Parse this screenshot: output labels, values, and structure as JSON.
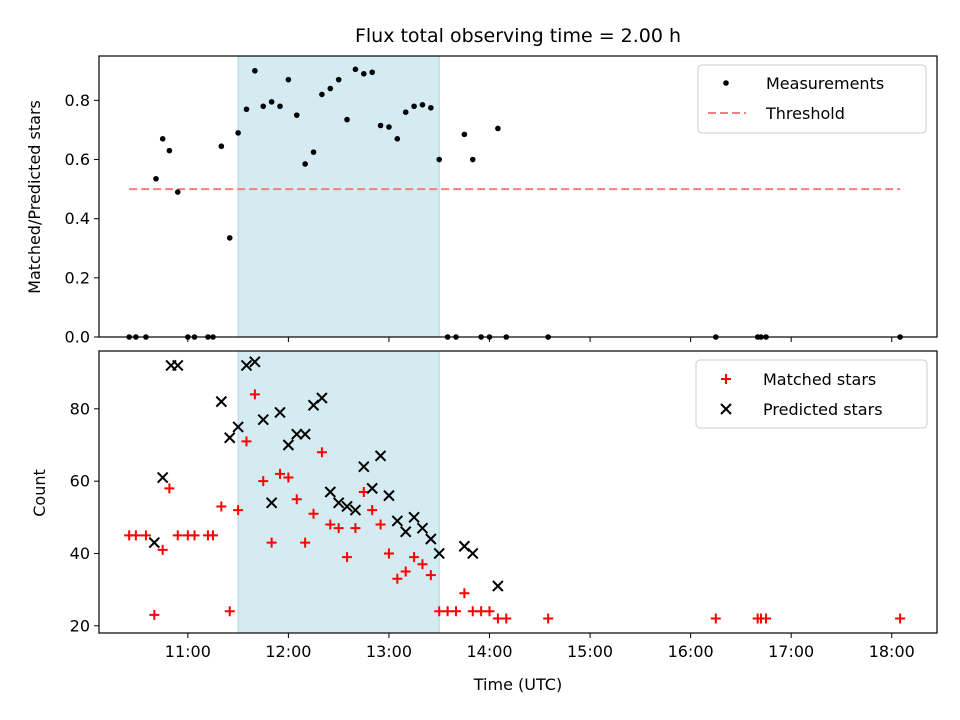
{
  "chart_data": [
    {
      "type": "scatter",
      "title": "Flux total observing time = 2.00 h",
      "ylabel": "Matched/Predicted stars",
      "xlim": [
        "10:07",
        "18:27"
      ],
      "ylim": [
        0,
        0.95
      ],
      "yticks": [
        0.0,
        0.2,
        0.4,
        0.6,
        0.8
      ],
      "ytick_labels": [
        "0.0",
        "0.2",
        "0.4",
        "0.6",
        "0.8"
      ],
      "xticks": [
        "11:00",
        "12:00",
        "13:00",
        "14:00",
        "15:00",
        "16:00",
        "17:00",
        "18:00"
      ],
      "shaded_span": [
        "11:30",
        "13:30"
      ],
      "shaded_color": "#d4ebf1",
      "legend": {
        "placement": "top-right",
        "measurements_label": "Measurements",
        "threshold_label": "Threshold"
      },
      "threshold": {
        "value": 0.5,
        "x_range": [
          "10:25",
          "18:05"
        ],
        "color": "#f08080"
      },
      "series": [
        {
          "name": "Measurements",
          "marker": "dot",
          "color": "#000000",
          "points": [
            [
              "10:25",
              0.0
            ],
            [
              "10:29",
              0.0
            ],
            [
              "10:35",
              0.0
            ],
            [
              "10:41",
              0.535
            ],
            [
              "10:45",
              0.67
            ],
            [
              "10:49",
              0.63
            ],
            [
              "10:54",
              0.49
            ],
            [
              "11:00",
              0.0
            ],
            [
              "11:04",
              0.0
            ],
            [
              "11:12",
              0.0
            ],
            [
              "11:15",
              0.0
            ],
            [
              "11:20",
              0.645
            ],
            [
              "11:25",
              0.335
            ],
            [
              "11:30",
              0.69
            ],
            [
              "11:35",
              0.77
            ],
            [
              "11:40",
              0.9
            ],
            [
              "11:45",
              0.78
            ],
            [
              "11:50",
              0.795
            ],
            [
              "11:55",
              0.78
            ],
            [
              "12:00",
              0.87
            ],
            [
              "12:05",
              0.75
            ],
            [
              "12:10",
              0.585
            ],
            [
              "12:15",
              0.625
            ],
            [
              "12:20",
              0.82
            ],
            [
              "12:25",
              0.84
            ],
            [
              "12:30",
              0.87
            ],
            [
              "12:35",
              0.735
            ],
            [
              "12:40",
              0.905
            ],
            [
              "12:45",
              0.89
            ],
            [
              "12:50",
              0.895
            ],
            [
              "12:55",
              0.715
            ],
            [
              "13:00",
              0.71
            ],
            [
              "13:05",
              0.67
            ],
            [
              "13:10",
              0.76
            ],
            [
              "13:15",
              0.78
            ],
            [
              "13:20",
              0.785
            ],
            [
              "13:25",
              0.775
            ],
            [
              "13:30",
              0.6
            ],
            [
              "13:35",
              0.0
            ],
            [
              "13:40",
              0.0
            ],
            [
              "13:45",
              0.685
            ],
            [
              "13:50",
              0.6
            ],
            [
              "13:55",
              0.0
            ],
            [
              "14:00",
              0.0
            ],
            [
              "14:05",
              0.705
            ],
            [
              "14:10",
              0.0
            ],
            [
              "14:35",
              0.0
            ],
            [
              "16:15",
              0.0
            ],
            [
              "16:40",
              0.0
            ],
            [
              "16:42",
              0.0
            ],
            [
              "16:45",
              0.0
            ],
            [
              "18:05",
              0.0
            ]
          ]
        }
      ]
    },
    {
      "type": "scatter",
      "xlabel": "Time (UTC)",
      "ylabel": "Count",
      "xlim": [
        "10:07",
        "18:27"
      ],
      "ylim": [
        18,
        96
      ],
      "yticks": [
        20,
        40,
        60,
        80
      ],
      "ytick_labels": [
        "20",
        "40",
        "60",
        "80"
      ],
      "xticks": [
        "11:00",
        "12:00",
        "13:00",
        "14:00",
        "15:00",
        "16:00",
        "17:00",
        "18:00"
      ],
      "shaded_span": [
        "11:30",
        "13:30"
      ],
      "legend": {
        "placement": "top-right"
      },
      "series": [
        {
          "name": "Matched stars",
          "marker": "plus",
          "color": "#ff0000",
          "points": [
            [
              "10:25",
              45
            ],
            [
              "10:29",
              45
            ],
            [
              "10:35",
              45
            ],
            [
              "10:40",
              23
            ],
            [
              "10:45",
              41
            ],
            [
              "10:49",
              58
            ],
            [
              "10:54",
              45
            ],
            [
              "11:00",
              45
            ],
            [
              "11:04",
              45
            ],
            [
              "11:12",
              45
            ],
            [
              "11:15",
              45
            ],
            [
              "11:20",
              53
            ],
            [
              "11:25",
              24
            ],
            [
              "11:30",
              52
            ],
            [
              "11:35",
              71
            ],
            [
              "11:40",
              84
            ],
            [
              "11:45",
              60
            ],
            [
              "11:50",
              43
            ],
            [
              "11:55",
              62
            ],
            [
              "12:00",
              61
            ],
            [
              "12:05",
              55
            ],
            [
              "12:10",
              43
            ],
            [
              "12:15",
              51
            ],
            [
              "12:20",
              68
            ],
            [
              "12:25",
              48
            ],
            [
              "12:30",
              47
            ],
            [
              "12:35",
              39
            ],
            [
              "12:40",
              47
            ],
            [
              "12:45",
              57
            ],
            [
              "12:50",
              52
            ],
            [
              "12:55",
              48
            ],
            [
              "13:00",
              40
            ],
            [
              "13:05",
              33
            ],
            [
              "13:10",
              35
            ],
            [
              "13:15",
              39
            ],
            [
              "13:20",
              37
            ],
            [
              "13:25",
              34
            ],
            [
              "13:30",
              24
            ],
            [
              "13:35",
              24
            ],
            [
              "13:40",
              24
            ],
            [
              "13:45",
              29
            ],
            [
              "13:50",
              24
            ],
            [
              "13:55",
              24
            ],
            [
              "14:00",
              24
            ],
            [
              "14:05",
              22
            ],
            [
              "14:10",
              22
            ],
            [
              "14:35",
              22
            ],
            [
              "16:15",
              22
            ],
            [
              "16:40",
              22
            ],
            [
              "16:42",
              22
            ],
            [
              "16:45",
              22
            ],
            [
              "18:05",
              22
            ]
          ]
        },
        {
          "name": "Predicted stars",
          "marker": "x",
          "color": "#000000",
          "points": [
            [
              "10:40",
              43
            ],
            [
              "10:45",
              61
            ],
            [
              "10:50",
              92
            ],
            [
              "10:54",
              92
            ],
            [
              "11:20",
              82
            ],
            [
              "11:25",
              72
            ],
            [
              "11:30",
              75
            ],
            [
              "11:35",
              92
            ],
            [
              "11:40",
              93
            ],
            [
              "11:45",
              77
            ],
            [
              "11:50",
              54
            ],
            [
              "11:55",
              79
            ],
            [
              "12:00",
              70
            ],
            [
              "12:05",
              73
            ],
            [
              "12:10",
              73
            ],
            [
              "12:15",
              81
            ],
            [
              "12:20",
              83
            ],
            [
              "12:25",
              57
            ],
            [
              "12:30",
              54
            ],
            [
              "12:35",
              53
            ],
            [
              "12:40",
              52
            ],
            [
              "12:45",
              64
            ],
            [
              "12:50",
              58
            ],
            [
              "12:55",
              67
            ],
            [
              "13:00",
              56
            ],
            [
              "13:05",
              49
            ],
            [
              "13:10",
              46
            ],
            [
              "13:15",
              50
            ],
            [
              "13:20",
              47
            ],
            [
              "13:25",
              44
            ],
            [
              "13:30",
              40
            ],
            [
              "13:45",
              42
            ],
            [
              "13:50",
              40
            ],
            [
              "14:05",
              31
            ]
          ]
        }
      ]
    }
  ]
}
